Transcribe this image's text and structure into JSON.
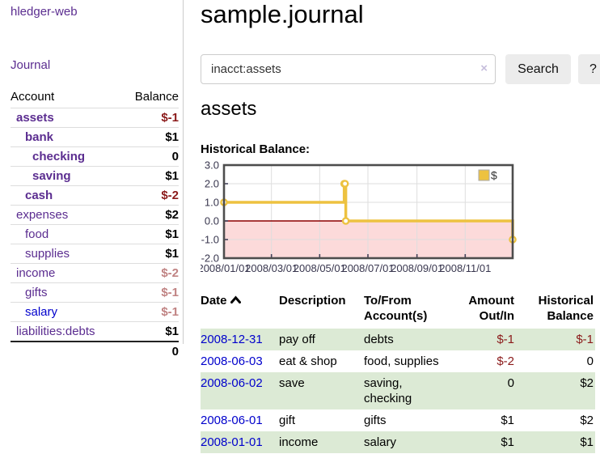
{
  "sidebar": {
    "brand": "hledger-web",
    "journal_link": "Journal",
    "accounts": {
      "headers": {
        "account": "Account",
        "balance": "Balance"
      },
      "rows": [
        {
          "name": "assets",
          "depth": 1,
          "bold": true,
          "balance": "$-1",
          "bal_class": "neg",
          "link_class": "purple"
        },
        {
          "name": "bank",
          "depth": 2,
          "bold": true,
          "balance": "$1",
          "bal_class": "",
          "link_class": "purple"
        },
        {
          "name": "checking",
          "depth": 3,
          "bold": true,
          "balance": "0",
          "bal_class": "",
          "link_class": "purple"
        },
        {
          "name": "saving",
          "depth": 3,
          "bold": true,
          "balance": "$1",
          "bal_class": "",
          "link_class": "purple"
        },
        {
          "name": "cash",
          "depth": 2,
          "bold": true,
          "balance": "$-2",
          "bal_class": "neg",
          "link_class": "purple"
        },
        {
          "name": "expenses",
          "depth": 1,
          "bold": false,
          "balance": "$2",
          "bal_class": "",
          "link_class": "purple"
        },
        {
          "name": "food",
          "depth": 2,
          "bold": false,
          "balance": "$1",
          "bal_class": "",
          "link_class": "purple"
        },
        {
          "name": "supplies",
          "depth": 2,
          "bold": false,
          "balance": "$1",
          "bal_class": "",
          "link_class": "purple"
        },
        {
          "name": "income",
          "depth": 1,
          "bold": false,
          "balance": "$-2",
          "bal_class": "neg-soft",
          "link_class": "purple"
        },
        {
          "name": "gifts",
          "depth": 2,
          "bold": false,
          "balance": "$-1",
          "bal_class": "neg-soft",
          "link_class": "purple"
        },
        {
          "name": "salary",
          "depth": 2,
          "bold": false,
          "balance": "$-1",
          "bal_class": "neg-soft",
          "link_class": "blue"
        },
        {
          "name": "liabilities:debts",
          "depth": 1,
          "bold": false,
          "balance": "$1",
          "bal_class": "",
          "link_class": "purple"
        }
      ],
      "total": "0"
    }
  },
  "header": {
    "title": "sample.journal"
  },
  "search": {
    "value": "inacct:assets",
    "clear_icon": "×",
    "button_label": "Search",
    "help_label": "?"
  },
  "account_page": {
    "title": "assets",
    "chart_label": "Historical Balance:"
  },
  "chart_data": {
    "type": "line",
    "step": true,
    "title": "Historical Balance:",
    "series": [
      {
        "name": "$",
        "color": "#edc240",
        "points": [
          [
            "2008/01/01",
            1
          ],
          [
            "2008/06/01",
            2
          ],
          [
            "2008/06/02",
            2
          ],
          [
            "2008/06/03",
            0
          ],
          [
            "2008/12/31",
            -1
          ]
        ]
      }
    ],
    "xlim": [
      "2008/01/01",
      "2008/12/31"
    ],
    "ylim": [
      -2,
      3
    ],
    "y_ticks": [
      3.0,
      2.0,
      1.0,
      0.0,
      -1.0,
      -2.0
    ],
    "y_tick_labels": [
      "3.0",
      "2.0",
      "1.0",
      "0.0",
      "-1.0",
      "-2.0"
    ],
    "x_ticks": [
      "2008/01/01",
      "2008/03/01",
      "2008/05/01",
      "2008/07/01",
      "2008/09/01",
      "2008/11/01"
    ],
    "grid": true,
    "legend_position": "top-right",
    "negative_region_fill": "#fcdada",
    "zero_line_color": "#8b0000",
    "grid_color": "#dedede",
    "border_color": "#4d4d4d"
  },
  "transactions": {
    "columns": [
      "Date",
      "Description",
      "To/From Account(s)",
      "Amount Out/In",
      "Historical Balance"
    ],
    "rows": [
      {
        "date": "2008-12-31",
        "description": "pay off",
        "accounts": "debts",
        "amount": "$-1",
        "amount_neg": true,
        "balance": "$-1",
        "balance_neg": true,
        "highlight": true
      },
      {
        "date": "2008-06-03",
        "description": "eat & shop",
        "accounts": "food, supplies",
        "amount": "$-2",
        "amount_neg": true,
        "balance": "0",
        "balance_neg": false,
        "highlight": false
      },
      {
        "date": "2008-06-02",
        "description": "save",
        "accounts": "saving, checking",
        "amount": "0",
        "amount_neg": false,
        "balance": "$2",
        "balance_neg": false,
        "highlight": true
      },
      {
        "date": "2008-06-01",
        "description": "gift",
        "accounts": "gifts",
        "amount": "$1",
        "amount_neg": false,
        "balance": "$2",
        "balance_neg": false,
        "highlight": false
      },
      {
        "date": "2008-01-01",
        "description": "income",
        "accounts": "salary",
        "amount": "$1",
        "amount_neg": false,
        "balance": "$1",
        "balance_neg": false,
        "highlight": true
      }
    ]
  },
  "colors": {
    "purple_link": "#5b2d90",
    "blue_link": "#0000cc",
    "negative_strong": "#8b1a1a",
    "negative_soft": "#c08383",
    "row_highlight": "#dcead5",
    "series_gold": "#edc240"
  }
}
